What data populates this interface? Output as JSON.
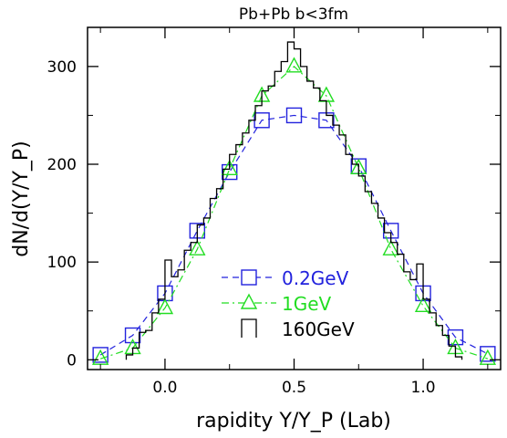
{
  "chart_data": {
    "type": "line",
    "title": "Pb+Pb b<3fm",
    "xlabel": "rapidity Y/Y_P (Lab)",
    "ylabel": "dN/d(Y/Y_P)",
    "xlim": [
      -0.3,
      1.3
    ],
    "ylim": [
      -10,
      340
    ],
    "xticks": [
      {
        "value": 0.0,
        "label": "0.0"
      },
      {
        "value": 0.5,
        "label": "0.5"
      },
      {
        "value": 1.0,
        "label": "1.0"
      }
    ],
    "yticks": [
      {
        "value": 0,
        "label": "0"
      },
      {
        "value": 100,
        "label": "100"
      },
      {
        "value": 200,
        "label": "200"
      },
      {
        "value": 300,
        "label": "300"
      }
    ],
    "legend_position": "bottom-left",
    "series": [
      {
        "name": "0.2GeV",
        "color": "#2222dd",
        "marker": "square",
        "line": "dashed",
        "x": [
          -0.25,
          -0.125,
          0.0,
          0.125,
          0.25,
          0.375,
          0.5,
          0.625,
          0.75,
          0.875,
          1.0,
          1.125,
          1.25
        ],
        "y": [
          5,
          25,
          68,
          132,
          192,
          245,
          250,
          245,
          198,
          132,
          68,
          23,
          6
        ]
      },
      {
        "name": "1GeV",
        "color": "#22dd22",
        "marker": "triangle",
        "line": "dashdot",
        "x": [
          -0.25,
          -0.125,
          0.0,
          0.125,
          0.25,
          0.375,
          0.5,
          0.625,
          0.75,
          0.875,
          1.0,
          1.125,
          1.25
        ],
        "y": [
          1,
          12,
          53,
          113,
          195,
          270,
          300,
          270,
          196,
          113,
          55,
          12,
          1
        ]
      },
      {
        "name": "160GeV",
        "color": "#000000",
        "marker": "none",
        "line": "histogram",
        "edges": [
          -0.15,
          -0.125,
          -0.1,
          -0.075,
          -0.05,
          -0.025,
          0.0,
          0.025,
          0.05,
          0.075,
          0.1,
          0.125,
          0.15,
          0.175,
          0.2,
          0.225,
          0.25,
          0.275,
          0.3,
          0.325,
          0.35,
          0.375,
          0.4,
          0.425,
          0.45,
          0.475,
          0.5,
          0.525,
          0.55,
          0.575,
          0.6,
          0.625,
          0.65,
          0.675,
          0.7,
          0.725,
          0.75,
          0.775,
          0.8,
          0.825,
          0.85,
          0.875,
          0.9,
          0.925,
          0.95,
          0.975,
          1.0,
          1.025,
          1.05,
          1.075,
          1.1,
          1.125,
          1.15
        ],
        "y": [
          5,
          12,
          28,
          30,
          48,
          62,
          102,
          85,
          92,
          112,
          120,
          138,
          145,
          165,
          175,
          195,
          210,
          220,
          232,
          245,
          260,
          275,
          280,
          295,
          305,
          325,
          318,
          300,
          285,
          278,
          265,
          250,
          240,
          230,
          210,
          200,
          188,
          172,
          160,
          145,
          130,
          120,
          108,
          90,
          82,
          98,
          62,
          48,
          35,
          25,
          14,
          3
        ]
      }
    ]
  }
}
